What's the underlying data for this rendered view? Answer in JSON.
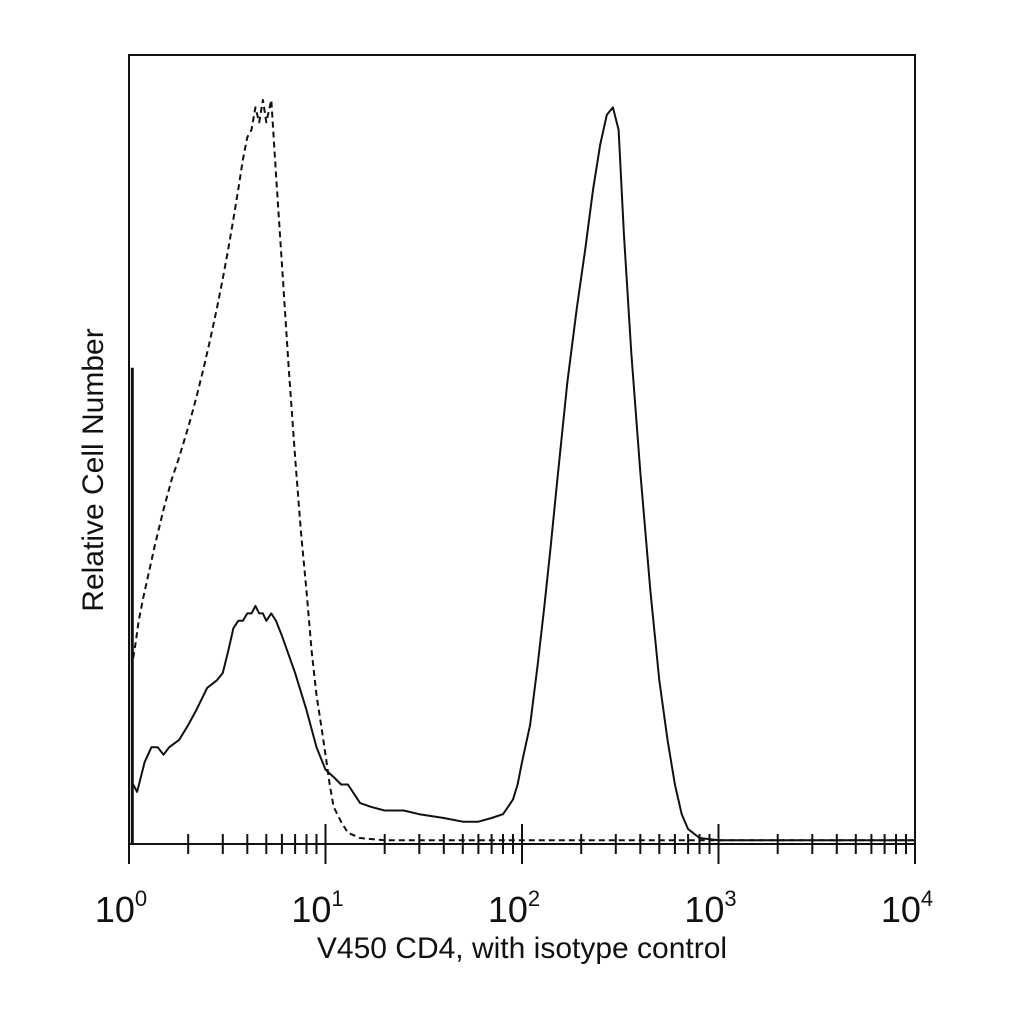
{
  "chart_data": {
    "type": "line",
    "title": "",
    "xlabel": "V450 CD4, with isotype control",
    "ylabel": "Relative Cell Number",
    "x_scale": "log",
    "xlim": [
      1,
      10000
    ],
    "ylim": [
      0,
      100
    ],
    "x_ticks": [
      {
        "value": 1,
        "base": "10",
        "exp": "0"
      },
      {
        "value": 10,
        "base": "10",
        "exp": "1"
      },
      {
        "value": 100,
        "base": "10",
        "exp": "2"
      },
      {
        "value": 1000,
        "base": "10",
        "exp": "3"
      },
      {
        "value": 10000,
        "base": "10",
        "exp": "4"
      }
    ],
    "grid": false,
    "series": [
      {
        "style": "dashed",
        "x": [
          1.05,
          1.08,
          1.12,
          1.18,
          1.25,
          1.35,
          1.5,
          1.65,
          1.8,
          2.0,
          2.2,
          2.4,
          2.6,
          2.8,
          3.0,
          3.2,
          3.4,
          3.6,
          3.8,
          4.0,
          4.2,
          4.4,
          4.6,
          4.8,
          5.0,
          5.3,
          5.6,
          6.0,
          6.5,
          7.0,
          7.5,
          8.0,
          8.5,
          9.0,
          9.5,
          10,
          10.5,
          11,
          12,
          13,
          15,
          20,
          50,
          200,
          1000,
          10000
        ],
        "y": [
          25,
          27,
          30,
          33,
          36,
          40,
          45,
          49,
          52,
          56,
          60,
          64,
          68,
          72,
          76,
          80,
          84,
          88,
          92,
          95,
          96,
          99,
          97,
          100,
          97,
          100,
          90,
          78,
          64,
          52,
          42,
          34,
          26,
          20,
          16,
          12,
          8,
          5,
          3,
          1.5,
          0.8,
          0.5,
          0.5,
          0.5,
          0.5,
          0.5
        ]
      },
      {
        "style": "solid",
        "x": [
          1.05,
          1.1,
          1.15,
          1.2,
          1.3,
          1.4,
          1.5,
          1.6,
          1.8,
          2.0,
          2.2,
          2.5,
          2.8,
          3.0,
          3.2,
          3.4,
          3.6,
          3.8,
          4.0,
          4.2,
          4.4,
          4.6,
          4.8,
          5.0,
          5.3,
          5.6,
          6.0,
          7.0,
          8.0,
          9.0,
          10,
          11,
          12,
          13,
          15,
          17,
          20,
          25,
          30,
          40,
          50,
          60,
          70,
          80,
          85,
          90,
          95,
          100,
          110,
          120,
          130,
          140,
          150,
          170,
          190,
          210,
          230,
          250,
          270,
          290,
          310,
          330,
          360,
          400,
          450,
          500,
          550,
          600,
          650,
          700,
          800,
          1000,
          2000,
          10000
        ],
        "y": [
          8,
          7,
          9,
          11,
          13,
          13,
          12,
          13,
          14,
          16,
          18,
          21,
          22,
          23,
          26,
          29,
          30,
          30,
          31,
          31,
          32,
          31,
          31,
          30,
          31,
          30,
          28,
          23,
          18,
          13,
          10,
          9,
          8,
          8,
          5.5,
          5,
          4.5,
          4.5,
          4,
          3.5,
          3,
          3,
          3.5,
          4,
          5,
          6,
          8,
          11,
          16,
          24,
          32,
          40,
          48,
          62,
          72,
          80,
          88,
          94,
          98,
          99,
          96,
          82,
          66,
          50,
          34,
          22,
          14,
          8,
          4,
          2,
          0.8,
          0.5,
          0.5,
          0.5
        ]
      },
      {
        "style": "solid",
        "x": [
          1.04,
          1.04
        ],
        "y": [
          0,
          64
        ]
      }
    ]
  }
}
